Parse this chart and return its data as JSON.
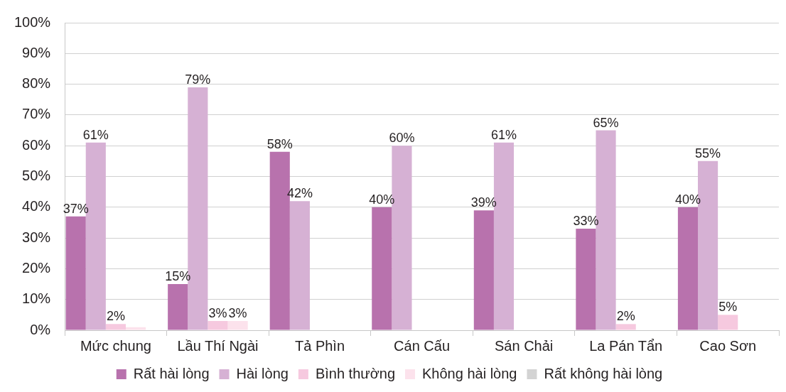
{
  "chart_data": {
    "type": "bar",
    "categories": [
      "Mức chung",
      "Lầu Thí Ngài",
      "Tả Phìn",
      "Cán Cấu",
      "Sán Chải",
      "La Pán Tẩn",
      "Cao Sơn"
    ],
    "series": [
      {
        "name": "Rất hài lòng",
        "color": "#b872ad",
        "values": [
          37,
          15,
          58,
          40,
          39,
          33,
          40
        ],
        "value_labels": [
          "37%",
          "15%",
          "58%",
          "40%",
          "39%",
          "33%",
          "40%"
        ]
      },
      {
        "name": "Hài lòng",
        "color": "#d6b1d4",
        "values": [
          61,
          79,
          42,
          60,
          61,
          65,
          55
        ],
        "value_labels": [
          "61%",
          "79%",
          "42%",
          "60%",
          "61%",
          "65%",
          "55%"
        ]
      },
      {
        "name": "Bình thường",
        "color": "#f6c9df",
        "values": [
          2,
          3,
          null,
          null,
          null,
          2,
          5
        ],
        "value_labels": [
          "2%",
          "3%",
          null,
          null,
          null,
          "2%",
          "5%"
        ]
      },
      {
        "name": "Không hài lòng",
        "color": "#fce2ec",
        "values": [
          1,
          3,
          null,
          null,
          null,
          null,
          null
        ],
        "value_labels": [
          null,
          "3%",
          null,
          null,
          null,
          null,
          null
        ]
      },
      {
        "name": "Rất không hài lòng",
        "color": "#d3d3d3",
        "values": [
          null,
          null,
          null,
          null,
          null,
          null,
          null
        ]
      }
    ],
    "ylim": [
      0,
      100
    ],
    "yticks": [
      {
        "value": 0,
        "label": "0%"
      },
      {
        "value": 10,
        "label": "10%"
      },
      {
        "value": 20,
        "label": "20%"
      },
      {
        "value": 30,
        "label": "30%"
      },
      {
        "value": 40,
        "label": "40%"
      },
      {
        "value": 50,
        "label": "50%"
      },
      {
        "value": 60,
        "label": "60%"
      },
      {
        "value": 70,
        "label": "70%"
      },
      {
        "value": 80,
        "label": "80%"
      },
      {
        "value": 90,
        "label": "90%"
      },
      {
        "value": 100,
        "label": "100%"
      }
    ],
    "grid": "y",
    "legend": "bottom"
  }
}
